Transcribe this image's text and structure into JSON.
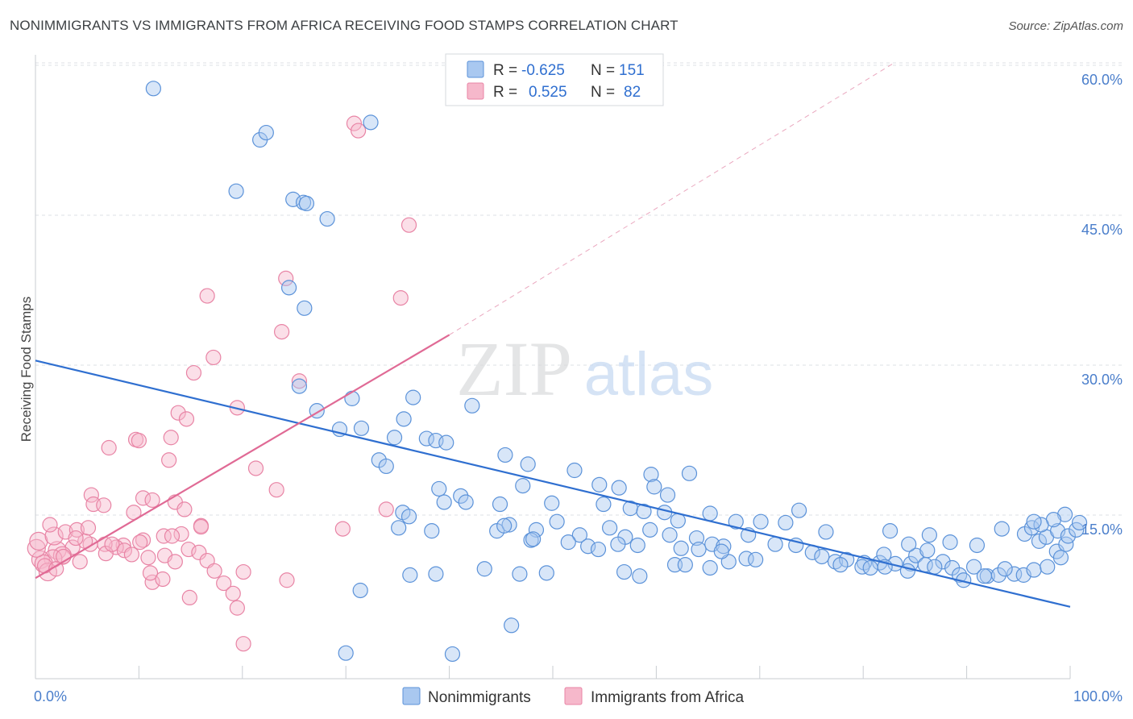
{
  "title": "NONIMMIGRANTS VS IMMIGRANTS FROM AFRICA RECEIVING FOOD STAMPS CORRELATION CHART",
  "source": "Source: ZipAtlas.com",
  "watermark": {
    "zip": "ZIP",
    "atlas": "atlas"
  },
  "colors": {
    "blue_fill": "#a9c8f0",
    "blue_stroke": "#5b92d9",
    "blue_line": "#2f6fd0",
    "pink_fill": "#f6b8cb",
    "pink_stroke": "#e884a5",
    "pink_line": "#e06a95",
    "grid": "#dde0e4",
    "tick_text": "#4a7ecb"
  },
  "legend": {
    "rows": [
      {
        "r_label": "R =",
        "r_value": "-0.625",
        "n_label": "N =",
        "n_value": "151"
      },
      {
        "r_label": "R =",
        "r_value": "0.525",
        "n_label": "N =",
        "n_value": "82"
      }
    ]
  },
  "bottom_legend": {
    "items": [
      "Nonimmigrants",
      "Immigrants from Africa"
    ]
  },
  "chart_data": {
    "type": "scatter",
    "title": "NONIMMIGRANTS VS IMMIGRANTS FROM AFRICA RECEIVING FOOD STAMPS CORRELATION CHART",
    "xlabel": "",
    "ylabel": "Receiving Food Stamps",
    "xlim": [
      0,
      100
    ],
    "ylim": [
      0,
      60
    ],
    "x_tick_labels": [
      "0.0%",
      "100.0%"
    ],
    "y_ticks": [
      15,
      30,
      45,
      60
    ],
    "y_tick_labels": [
      "15.0%",
      "30.0%",
      "45.0%",
      "60.0%"
    ],
    "grid": true,
    "legend_position": "top-center",
    "series": [
      {
        "name": "Nonimmigrants",
        "color": "#a9c8f0",
        "trend": {
          "x": [
            0,
            100
          ],
          "y": [
            31.0,
            7.0
          ]
        },
        "points": [
          [
            19.4,
            47.5
          ],
          [
            11.4,
            57.5
          ],
          [
            21.7,
            52.5
          ],
          [
            22.3,
            53.2
          ],
          [
            32.4,
            54.2
          ],
          [
            24.9,
            46.7
          ],
          [
            25.9,
            46.4
          ],
          [
            26.2,
            46.3
          ],
          [
            28.2,
            44.8
          ],
          [
            24.5,
            38.1
          ],
          [
            26.0,
            36.1
          ],
          [
            25.5,
            28.5
          ],
          [
            27.2,
            26.1
          ],
          [
            30.6,
            27.3
          ],
          [
            29.4,
            24.3
          ],
          [
            31.5,
            24.4
          ],
          [
            36.5,
            27.4
          ],
          [
            42.2,
            26.6
          ],
          [
            35.6,
            25.3
          ],
          [
            37.8,
            23.4
          ],
          [
            38.7,
            23.2
          ],
          [
            39.7,
            23.0
          ],
          [
            34.7,
            23.5
          ],
          [
            33.2,
            21.3
          ],
          [
            33.9,
            20.7
          ],
          [
            39.0,
            18.5
          ],
          [
            45.4,
            21.8
          ],
          [
            47.6,
            20.9
          ],
          [
            52.1,
            20.3
          ],
          [
            59.5,
            19.9
          ],
          [
            63.2,
            20.0
          ],
          [
            59.8,
            18.7
          ],
          [
            47.1,
            18.8
          ],
          [
            54.5,
            18.9
          ],
          [
            56.4,
            18.6
          ],
          [
            61.1,
            17.9
          ],
          [
            39.5,
            17.2
          ],
          [
            41.1,
            17.8
          ],
          [
            41.6,
            17.2
          ],
          [
            35.5,
            16.2
          ],
          [
            36.1,
            15.8
          ],
          [
            35.1,
            14.7
          ],
          [
            38.3,
            14.4
          ],
          [
            44.9,
            17.0
          ],
          [
            49.9,
            17.1
          ],
          [
            54.9,
            17.0
          ],
          [
            57.5,
            16.6
          ],
          [
            58.8,
            16.3
          ],
          [
            60.8,
            16.2
          ],
          [
            62.1,
            15.4
          ],
          [
            65.2,
            16.1
          ],
          [
            67.7,
            15.3
          ],
          [
            70.1,
            15.3
          ],
          [
            72.5,
            15.2
          ],
          [
            73.8,
            16.4
          ],
          [
            76.4,
            14.3
          ],
          [
            44.6,
            14.4
          ],
          [
            48.4,
            14.5
          ],
          [
            50.4,
            15.3
          ],
          [
            52.6,
            14.0
          ],
          [
            55.5,
            14.7
          ],
          [
            57.0,
            13.8
          ],
          [
            59.4,
            14.5
          ],
          [
            61.3,
            14.0
          ],
          [
            63.9,
            13.7
          ],
          [
            65.4,
            13.1
          ],
          [
            66.5,
            12.9
          ],
          [
            68.9,
            14.0
          ],
          [
            71.5,
            13.1
          ],
          [
            73.5,
            13.0
          ],
          [
            75.1,
            12.3
          ],
          [
            76.0,
            11.9
          ],
          [
            77.3,
            11.4
          ],
          [
            78.4,
            11.6
          ],
          [
            80.1,
            11.3
          ],
          [
            81.6,
            11.3
          ],
          [
            82.0,
            12.1
          ],
          [
            83.1,
            11.2
          ],
          [
            84.6,
            11.2
          ],
          [
            85.1,
            12.0
          ],
          [
            86.2,
            12.5
          ],
          [
            87.7,
            11.4
          ],
          [
            88.6,
            10.8
          ],
          [
            89.3,
            10.1
          ],
          [
            90.7,
            10.9
          ],
          [
            92.0,
            10.0
          ],
          [
            93.1,
            10.1
          ],
          [
            94.6,
            10.2
          ],
          [
            95.5,
            10.1
          ],
          [
            96.5,
            10.6
          ],
          [
            97.8,
            10.9
          ],
          [
            98.7,
            12.4
          ],
          [
            99.1,
            11.8
          ],
          [
            99.6,
            13.1
          ],
          [
            82.6,
            14.4
          ],
          [
            84.4,
            13.1
          ],
          [
            86.4,
            14.0
          ],
          [
            88.4,
            13.3
          ],
          [
            91.0,
            13.0
          ],
          [
            93.4,
            14.6
          ],
          [
            95.6,
            14.1
          ],
          [
            96.3,
            14.7
          ],
          [
            97.0,
            13.4
          ],
          [
            97.7,
            13.8
          ],
          [
            98.8,
            14.4
          ],
          [
            99.8,
            13.9
          ],
          [
            100.6,
            14.5
          ],
          [
            100.9,
            15.2
          ],
          [
            99.5,
            16.0
          ],
          [
            98.4,
            15.5
          ],
          [
            97.2,
            15.0
          ],
          [
            96.5,
            15.3
          ],
          [
            31.4,
            8.6
          ],
          [
            36.2,
            10.1
          ],
          [
            38.7,
            10.2
          ],
          [
            43.4,
            10.7
          ],
          [
            46.8,
            10.2
          ],
          [
            49.4,
            10.3
          ],
          [
            56.9,
            10.4
          ],
          [
            58.4,
            10.0
          ],
          [
            61.8,
            11.1
          ],
          [
            62.8,
            11.1
          ],
          [
            65.2,
            10.8
          ],
          [
            67.0,
            11.4
          ],
          [
            68.7,
            11.7
          ],
          [
            69.6,
            11.6
          ],
          [
            79.9,
            10.9
          ],
          [
            80.7,
            10.8
          ],
          [
            82.1,
            10.9
          ],
          [
            84.3,
            10.5
          ],
          [
            86.0,
            11.1
          ],
          [
            86.9,
            10.9
          ],
          [
            91.7,
            10.0
          ],
          [
            93.7,
            10.7
          ],
          [
            89.7,
            9.6
          ],
          [
            77.8,
            11.1
          ],
          [
            46.0,
            5.2
          ],
          [
            30.0,
            2.5
          ],
          [
            40.3,
            2.4
          ],
          [
            45.8,
            15.0
          ],
          [
            45.3,
            14.9
          ],
          [
            47.9,
            13.5
          ],
          [
            48.1,
            13.6
          ],
          [
            51.5,
            13.3
          ],
          [
            53.4,
            12.9
          ],
          [
            54.4,
            12.6
          ],
          [
            56.3,
            13.1
          ],
          [
            58.2,
            13.0
          ],
          [
            62.4,
            12.7
          ],
          [
            64.1,
            12.6
          ],
          [
            66.3,
            12.4
          ]
        ]
      },
      {
        "name": "Immigrants from Africa",
        "color": "#f6b8cb",
        "trend": {
          "x": [
            0,
            40
          ],
          "y": [
            9.8,
            33.5
          ],
          "x_dashed_to": 83,
          "y_dashed_to": 60
        },
        "points": [
          [
            30.8,
            54.1
          ],
          [
            31.2,
            53.4
          ],
          [
            36.1,
            44.2
          ],
          [
            24.2,
            39.0
          ],
          [
            16.6,
            37.3
          ],
          [
            35.3,
            37.1
          ],
          [
            23.8,
            33.8
          ],
          [
            17.2,
            31.3
          ],
          [
            15.3,
            29.8
          ],
          [
            25.5,
            29.0
          ],
          [
            19.5,
            26.4
          ],
          [
            13.8,
            25.9
          ],
          [
            14.6,
            25.3
          ],
          [
            13.1,
            23.5
          ],
          [
            9.7,
            23.3
          ],
          [
            10.0,
            23.2
          ],
          [
            7.1,
            22.5
          ],
          [
            12.9,
            21.3
          ],
          [
            21.3,
            20.5
          ],
          [
            23.3,
            18.4
          ],
          [
            5.4,
            17.9
          ],
          [
            5.6,
            17.0
          ],
          [
            6.6,
            16.9
          ],
          [
            10.4,
            17.6
          ],
          [
            11.3,
            17.4
          ],
          [
            13.5,
            17.2
          ],
          [
            14.4,
            16.5
          ],
          [
            9.5,
            16.2
          ],
          [
            16.0,
            14.9
          ],
          [
            14.1,
            14.1
          ],
          [
            12.4,
            13.9
          ],
          [
            13.2,
            13.9
          ],
          [
            10.4,
            13.5
          ],
          [
            10.1,
            13.3
          ],
          [
            8.5,
            13.0
          ],
          [
            7.8,
            12.8
          ],
          [
            6.7,
            13.1
          ],
          [
            5.3,
            13.1
          ],
          [
            4.8,
            13.4
          ],
          [
            3.6,
            12.8
          ],
          [
            2.1,
            12.5
          ],
          [
            2.6,
            12.0
          ],
          [
            1.7,
            11.7
          ],
          [
            0.5,
            11.6
          ],
          [
            0.8,
            11.2
          ],
          [
            1.2,
            10.4
          ],
          [
            0.1,
            12.7
          ],
          [
            0.3,
            13.4
          ],
          [
            1.8,
            13.9
          ],
          [
            2.9,
            14.3
          ],
          [
            4.0,
            14.5
          ],
          [
            5.1,
            14.7
          ],
          [
            6.8,
            12.2
          ],
          [
            7.4,
            13.1
          ],
          [
            8.6,
            12.5
          ],
          [
            9.3,
            12.1
          ],
          [
            10.9,
            11.8
          ],
          [
            12.5,
            12.0
          ],
          [
            13.5,
            11.4
          ],
          [
            14.8,
            12.6
          ],
          [
            15.8,
            12.3
          ],
          [
            16.6,
            11.5
          ],
          [
            16.0,
            14.8
          ],
          [
            17.3,
            10.5
          ],
          [
            18.2,
            9.3
          ],
          [
            19.1,
            8.3
          ],
          [
            20.1,
            10.4
          ],
          [
            19.5,
            6.9
          ],
          [
            20.1,
            3.4
          ],
          [
            14.9,
            7.9
          ],
          [
            11.3,
            9.4
          ],
          [
            11.1,
            10.3
          ],
          [
            24.3,
            9.6
          ],
          [
            29.7,
            14.6
          ],
          [
            33.9,
            16.5
          ],
          [
            12.3,
            9.7
          ],
          [
            3.9,
            13.7
          ],
          [
            1.4,
            15.0
          ],
          [
            2.7,
            11.9
          ],
          [
            4.3,
            11.4
          ],
          [
            0.9,
            11.0
          ],
          [
            2.0,
            10.7
          ]
        ]
      }
    ]
  }
}
